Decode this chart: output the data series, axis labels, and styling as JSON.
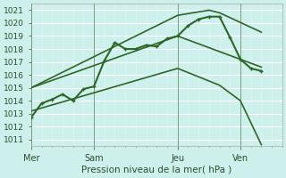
{
  "xlabel": "Pression niveau de la mer( hPa )",
  "bg_color": "#cef0ec",
  "grid_major_color": "#ffffff",
  "grid_minor_color": "#ddf5f2",
  "line_color": "#2d6628",
  "vline_color": "#7a9a7a",
  "ylim": [
    1010.5,
    1021.5
  ],
  "xlim": [
    0,
    24
  ],
  "yticks": [
    1011,
    1012,
    1013,
    1014,
    1015,
    1016,
    1017,
    1018,
    1019,
    1020,
    1021
  ],
  "day_labels": [
    "Mer",
    "Sam",
    "Jeu",
    "Ven"
  ],
  "day_positions": [
    0,
    6,
    14,
    20
  ],
  "series": [
    {
      "x": [
        0,
        1,
        2,
        3,
        4,
        5,
        6,
        7,
        8,
        9,
        10,
        11,
        12,
        13,
        14,
        15,
        16,
        17,
        18,
        19,
        20,
        21,
        22
      ],
      "y": [
        1012.7,
        1013.8,
        1014.1,
        1014.5,
        1014.0,
        1014.9,
        1015.1,
        1017.1,
        1018.5,
        1018.0,
        1018.0,
        1018.3,
        1018.2,
        1018.8,
        1019.0,
        1019.8,
        1020.3,
        1020.5,
        1020.5,
        1018.9,
        1017.2,
        1016.5,
        1016.3
      ],
      "linewidth": 1.5,
      "markersize": 3.0
    },
    {
      "x": [
        0,
        14,
        17,
        18,
        22
      ],
      "y": [
        1015.0,
        1020.6,
        1021.0,
        1020.8,
        1019.3
      ],
      "linewidth": 1.2,
      "markersize": 0
    },
    {
      "x": [
        0,
        14,
        20,
        21,
        22
      ],
      "y": [
        1015.0,
        1019.0,
        1017.2,
        1016.9,
        1016.6
      ],
      "linewidth": 1.2,
      "markersize": 0
    },
    {
      "x": [
        0,
        14,
        18,
        20,
        22
      ],
      "y": [
        1013.2,
        1016.5,
        1015.2,
        1014.0,
        1010.6
      ],
      "linewidth": 1.2,
      "markersize": 0
    }
  ]
}
